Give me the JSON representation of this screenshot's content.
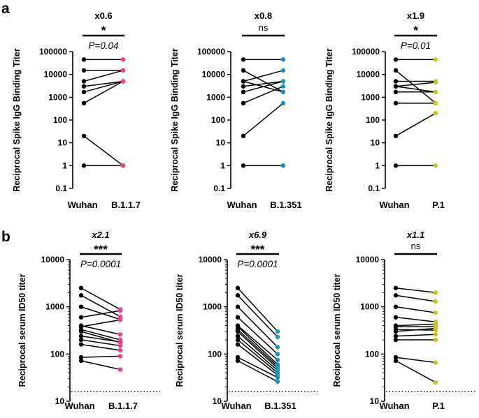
{
  "figure": {
    "panel_a_label": "a",
    "panel_b_label": "b"
  },
  "colors": {
    "reference_dot": "#000000",
    "line": "#000000",
    "B.1.1.7": "#ee3e8e",
    "B.1.351": "#1b96ba",
    "P.1": "#c5c52a"
  },
  "chart_data": [
    {
      "type": "scatter",
      "style": "paired-lines",
      "panel": "a",
      "categories": [
        "Wuhan",
        "B.1.1.7"
      ],
      "ylabel": "Reciprocal Spike IgG Binding Titer",
      "yscale": "log",
      "ylim": [
        0.1,
        100000
      ],
      "yticks": [
        "0.1",
        "1",
        "10",
        "100",
        "1000",
        "10000",
        "100000"
      ],
      "fold_label": "x0.6",
      "significance": "*",
      "p_value": "P=0.04",
      "pairs": [
        [
          45000,
          45000
        ],
        [
          15000,
          15000
        ],
        [
          5000,
          15000
        ],
        [
          3000,
          5000
        ],
        [
          1700,
          5000
        ],
        [
          550,
          5000
        ],
        [
          20,
          1
        ],
        [
          1,
          1
        ]
      ]
    },
    {
      "type": "scatter",
      "style": "paired-lines",
      "panel": "a",
      "categories": [
        "Wuhan",
        "B.1.351"
      ],
      "ylabel": "Reciprocal Spike IgG Binding Titer",
      "yscale": "log",
      "ylim": [
        0.1,
        100000
      ],
      "yticks": [
        "0.1",
        "1",
        "10",
        "100",
        "1000",
        "10000",
        "100000"
      ],
      "fold_label": "x0.8",
      "significance": "ns",
      "p_value": "",
      "pairs": [
        [
          45000,
          45000
        ],
        [
          15000,
          1700
        ],
        [
          5000,
          15000
        ],
        [
          5000,
          1700
        ],
        [
          3000,
          5000
        ],
        [
          1700,
          5000
        ],
        [
          550,
          3000
        ],
        [
          20,
          550
        ],
        [
          1,
          1
        ]
      ]
    },
    {
      "type": "scatter",
      "style": "paired-lines",
      "panel": "a",
      "categories": [
        "Wuhan",
        "P.1"
      ],
      "ylabel": "Reciprocal Spike IgG Binding Titer",
      "yscale": "log",
      "ylim": [
        0.1,
        100000
      ],
      "yticks": [
        "0.1",
        "1",
        "10",
        "100",
        "1000",
        "10000",
        "100000"
      ],
      "fold_label": "x1.9",
      "significance": "*",
      "p_value": "P=0.01",
      "pairs": [
        [
          45000,
          45000
        ],
        [
          15000,
          550
        ],
        [
          5000,
          5000
        ],
        [
          3000,
          4500
        ],
        [
          3000,
          1700
        ],
        [
          1700,
          1700
        ],
        [
          550,
          550
        ],
        [
          20,
          200
        ],
        [
          1,
          1
        ]
      ]
    },
    {
      "type": "scatter",
      "style": "paired-lines",
      "panel": "b",
      "categories": [
        "Wuhan",
        "B.1.1.7"
      ],
      "ylabel": "Reciprocal serum ID50 titer",
      "yscale": "log",
      "ylim": [
        10,
        10000
      ],
      "yticks": [
        "10",
        "100",
        "1000",
        "10000"
      ],
      "threshold": 16,
      "fold_label": "x2.1",
      "significance": "***",
      "p_value": "P=0.0001",
      "pairs": [
        [
          2500,
          880
        ],
        [
          1750,
          620
        ],
        [
          1000,
          540
        ],
        [
          600,
          830
        ],
        [
          400,
          260
        ],
        [
          380,
          530
        ],
        [
          330,
          200
        ],
        [
          300,
          175
        ],
        [
          240,
          180
        ],
        [
          200,
          150
        ],
        [
          160,
          120
        ],
        [
          85,
          90
        ],
        [
          72,
          47
        ]
      ]
    },
    {
      "type": "scatter",
      "style": "paired-lines",
      "panel": "b",
      "categories": [
        "Wuhan",
        "B.1.351"
      ],
      "ylabel": "Reciprocal serum ID50 titer",
      "yscale": "log",
      "ylim": [
        10,
        10000
      ],
      "yticks": [
        "10",
        "100",
        "1000",
        "10000"
      ],
      "threshold": 16,
      "fold_label": "x6.9",
      "significance": "***",
      "p_value": "P=0.0001",
      "pairs": [
        [
          2500,
          300
        ],
        [
          1750,
          230
        ],
        [
          1000,
          140
        ],
        [
          600,
          100
        ],
        [
          400,
          75
        ],
        [
          380,
          60
        ],
        [
          330,
          55
        ],
        [
          300,
          50
        ],
        [
          240,
          45
        ],
        [
          200,
          40
        ],
        [
          160,
          36
        ],
        [
          85,
          32
        ],
        [
          72,
          26
        ]
      ]
    },
    {
      "type": "scatter",
      "style": "paired-lines",
      "panel": "b",
      "categories": [
        "Wuhan",
        "P.1"
      ],
      "ylabel": "Reciprocal serum ID50 titer",
      "yscale": "log",
      "ylim": [
        10,
        10000
      ],
      "yticks": [
        "10",
        "100",
        "1000",
        "10000"
      ],
      "threshold": 16,
      "fold_label": "x1.1",
      "significance": "ns",
      "p_value": "",
      "pairs": [
        [
          2500,
          2000
        ],
        [
          1750,
          1300
        ],
        [
          1000,
          750
        ],
        [
          600,
          480
        ],
        [
          400,
          430
        ],
        [
          380,
          380
        ],
        [
          330,
          320
        ],
        [
          300,
          350
        ],
        [
          240,
          260
        ],
        [
          200,
          200
        ],
        [
          85,
          66
        ],
        [
          72,
          25
        ]
      ]
    }
  ]
}
